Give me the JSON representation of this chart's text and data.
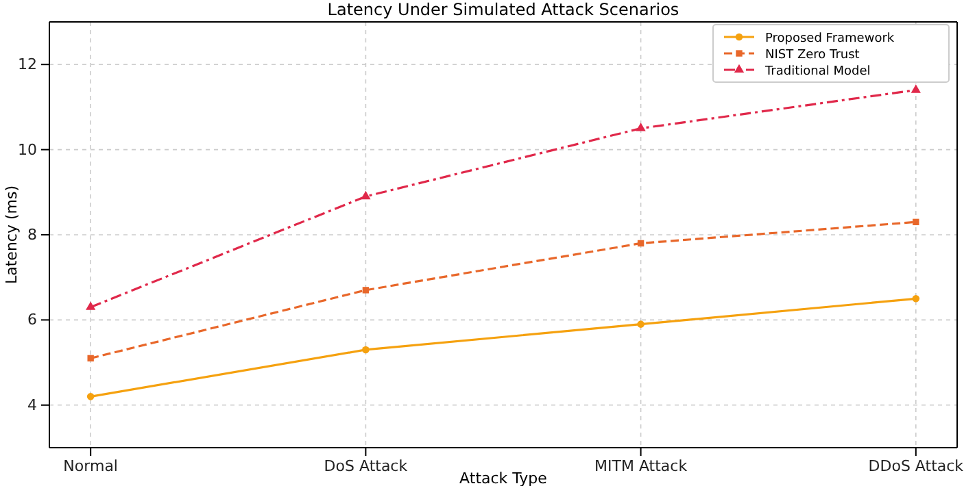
{
  "chart_data": {
    "type": "line",
    "title": "Latency Under Simulated Attack Scenarios",
    "xlabel": "Attack Type",
    "ylabel": "Latency (ms)",
    "categories": [
      "Normal",
      "DoS Attack",
      "MITM Attack",
      "DDoS Attack"
    ],
    "series": [
      {
        "name": "Proposed Framework",
        "color": "#f5a10f",
        "values": [
          4.2,
          5.3,
          5.9,
          6.5
        ],
        "marker": "circle",
        "line_style": "solid"
      },
      {
        "name": "NIST Zero Trust",
        "color": "#e8672a",
        "values": [
          5.1,
          6.7,
          7.8,
          8.3
        ],
        "marker": "square",
        "line_style": "dashed"
      },
      {
        "name": "Traditional Model",
        "color": "#e0284a",
        "values": [
          6.3,
          8.9,
          10.5,
          11.4
        ],
        "marker": "triangle",
        "line_style": "dashdot"
      }
    ],
    "ylim": [
      3,
      13
    ],
    "yticks": [
      4,
      6,
      8,
      10,
      12
    ],
    "grid": true,
    "legend": "top right"
  }
}
